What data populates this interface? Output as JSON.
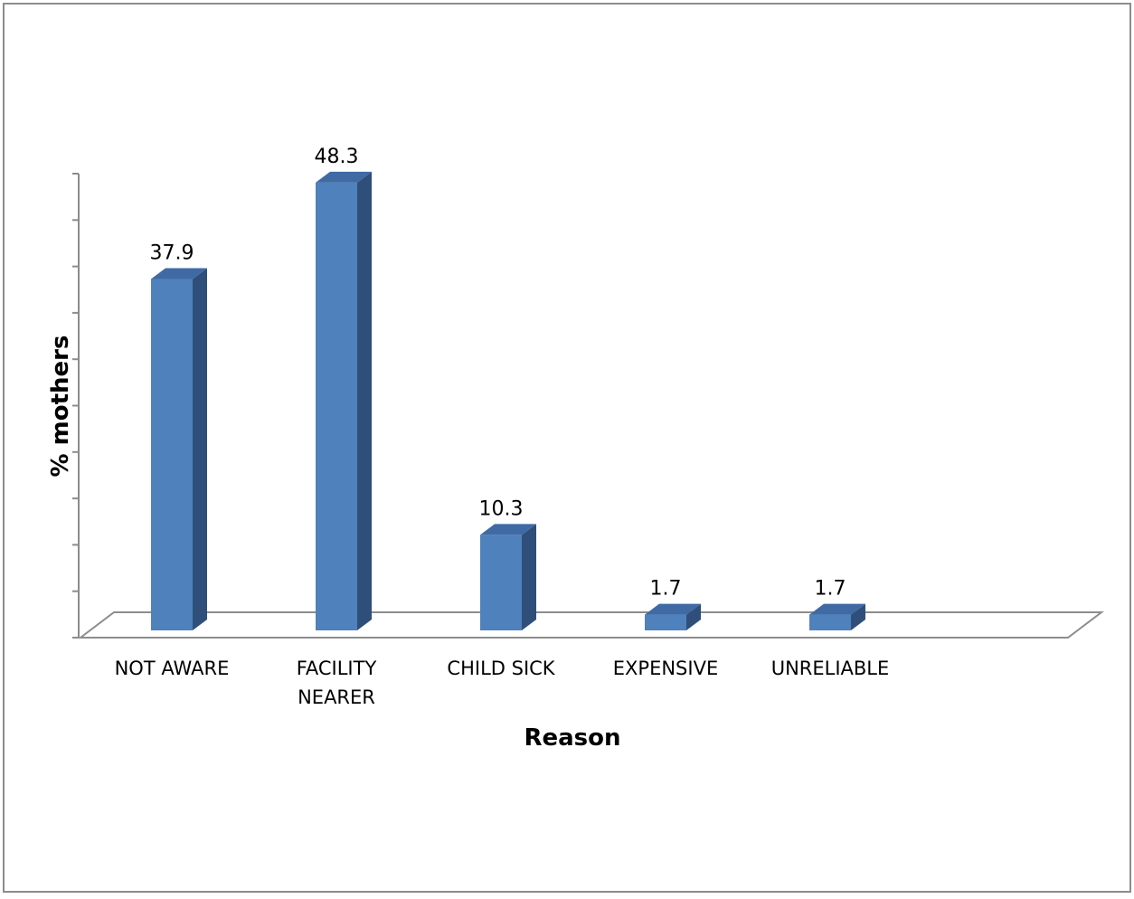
{
  "chart_data": {
    "type": "bar",
    "style": "3d-column",
    "categories": [
      [
        "NOT AWARE"
      ],
      [
        "FACILITY",
        "NEARER"
      ],
      [
        "CHILD SICK"
      ],
      [
        "EXPENSIVE"
      ],
      [
        "UNRELIABLE"
      ]
    ],
    "values": [
      37.9,
      48.3,
      10.3,
      1.7,
      1.7
    ],
    "data_labels": [
      "37.9",
      "48.3",
      "10.3",
      "1.7",
      "1.7"
    ],
    "xlabel": "Reason",
    "ylabel": "% mothers",
    "ylim": [
      0,
      50
    ],
    "y_tick_step": 5,
    "y_tick_labels_shown": false,
    "grid": false,
    "legend": "none",
    "colors": {
      "bar_front": "#4f81bd",
      "bar_side": "#2f4f7a",
      "bar_top": "#3f6aa3",
      "axis": "#8c8c8c",
      "frame": "#8c8c8c",
      "text": "#000000"
    }
  }
}
